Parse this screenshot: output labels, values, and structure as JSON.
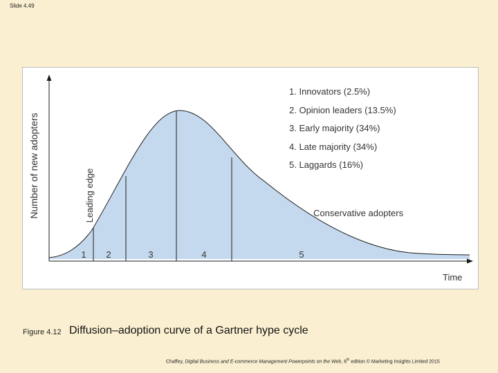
{
  "slide": {
    "number": "Slide 4.49"
  },
  "figure": {
    "number": "Figure 4.12",
    "title": "Diffusion–adoption curve of a Gartner hype cycle",
    "y_axis_label": "Number of new adopters",
    "x_axis_label": "Time",
    "leading_edge_label": "Leading edge",
    "conservative_label": "Conservative adopters",
    "legend": [
      "1. Innovators (2.5%)",
      "2. Opinion leaders (13.5%)",
      "3. Early majority (34%)",
      "4. Late majority (34%)",
      "5. Laggards (16%)"
    ],
    "segments": [
      "1",
      "2",
      "3",
      "4",
      "5"
    ],
    "colors": {
      "fill": "#c5d9ee",
      "stroke": "#1a1a1a"
    }
  },
  "credit": {
    "prefix": "Chaffey, ",
    "title": "Digital Business and E-commerce Management Powerpoints on the Web",
    "mid": ", 6",
    "sup": "th",
    "suffix": " edition © Marketing Insights Limited 2015"
  }
}
